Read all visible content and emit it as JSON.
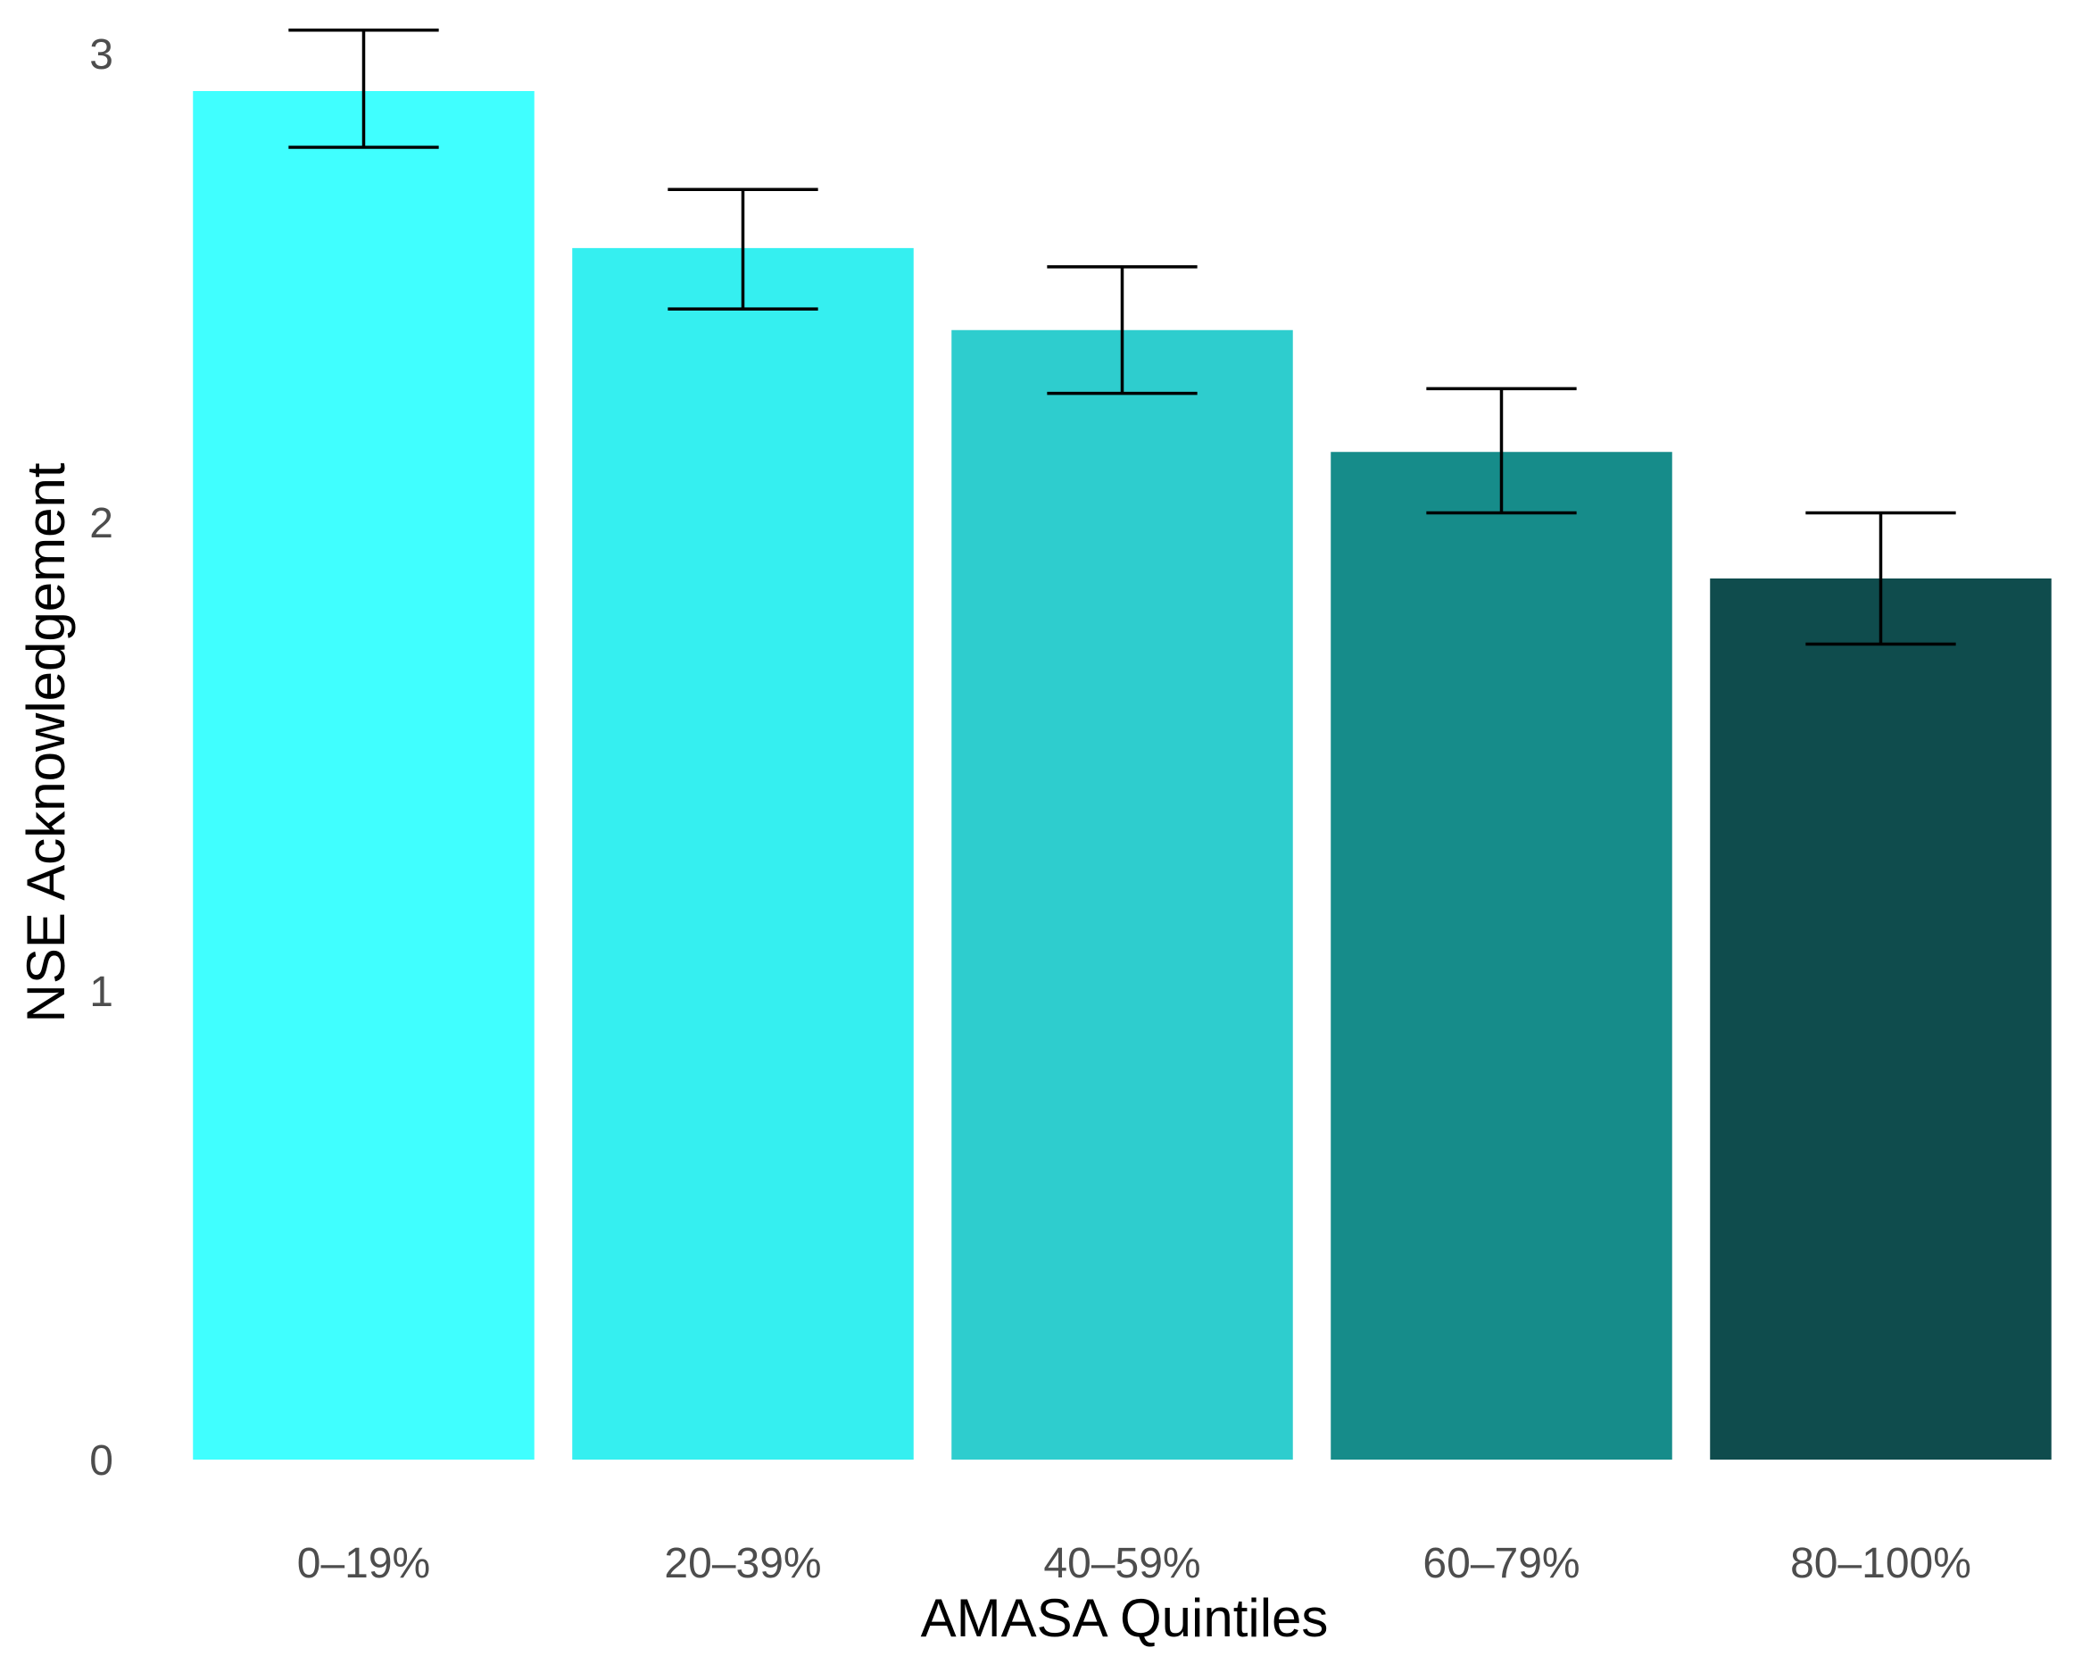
{
  "chart_data": {
    "type": "bar",
    "title": "",
    "xlabel": "AMASA Quintiles",
    "ylabel": "NSE Acknowledgement",
    "categories": [
      "0–19%",
      "20–39%",
      "40–59%",
      "60–79%",
      "80–100%"
    ],
    "values": [
      2.92,
      2.585,
      2.41,
      2.15,
      1.88
    ],
    "error_bars": [
      {
        "low": 2.8,
        "high": 3.05
      },
      {
        "low": 2.455,
        "high": 2.71
      },
      {
        "low": 2.275,
        "high": 2.545
      },
      {
        "low": 2.02,
        "high": 2.285
      },
      {
        "low": 1.74,
        "high": 2.02
      }
    ],
    "colors": [
      "#40ffff",
      "#35eff0",
      "#2ecdce",
      "#168c8a",
      "#0f4c4d"
    ],
    "ylim": [
      0,
      3
    ],
    "yticks": [
      0,
      1,
      2,
      3
    ],
    "grid": false,
    "legend": "none"
  }
}
